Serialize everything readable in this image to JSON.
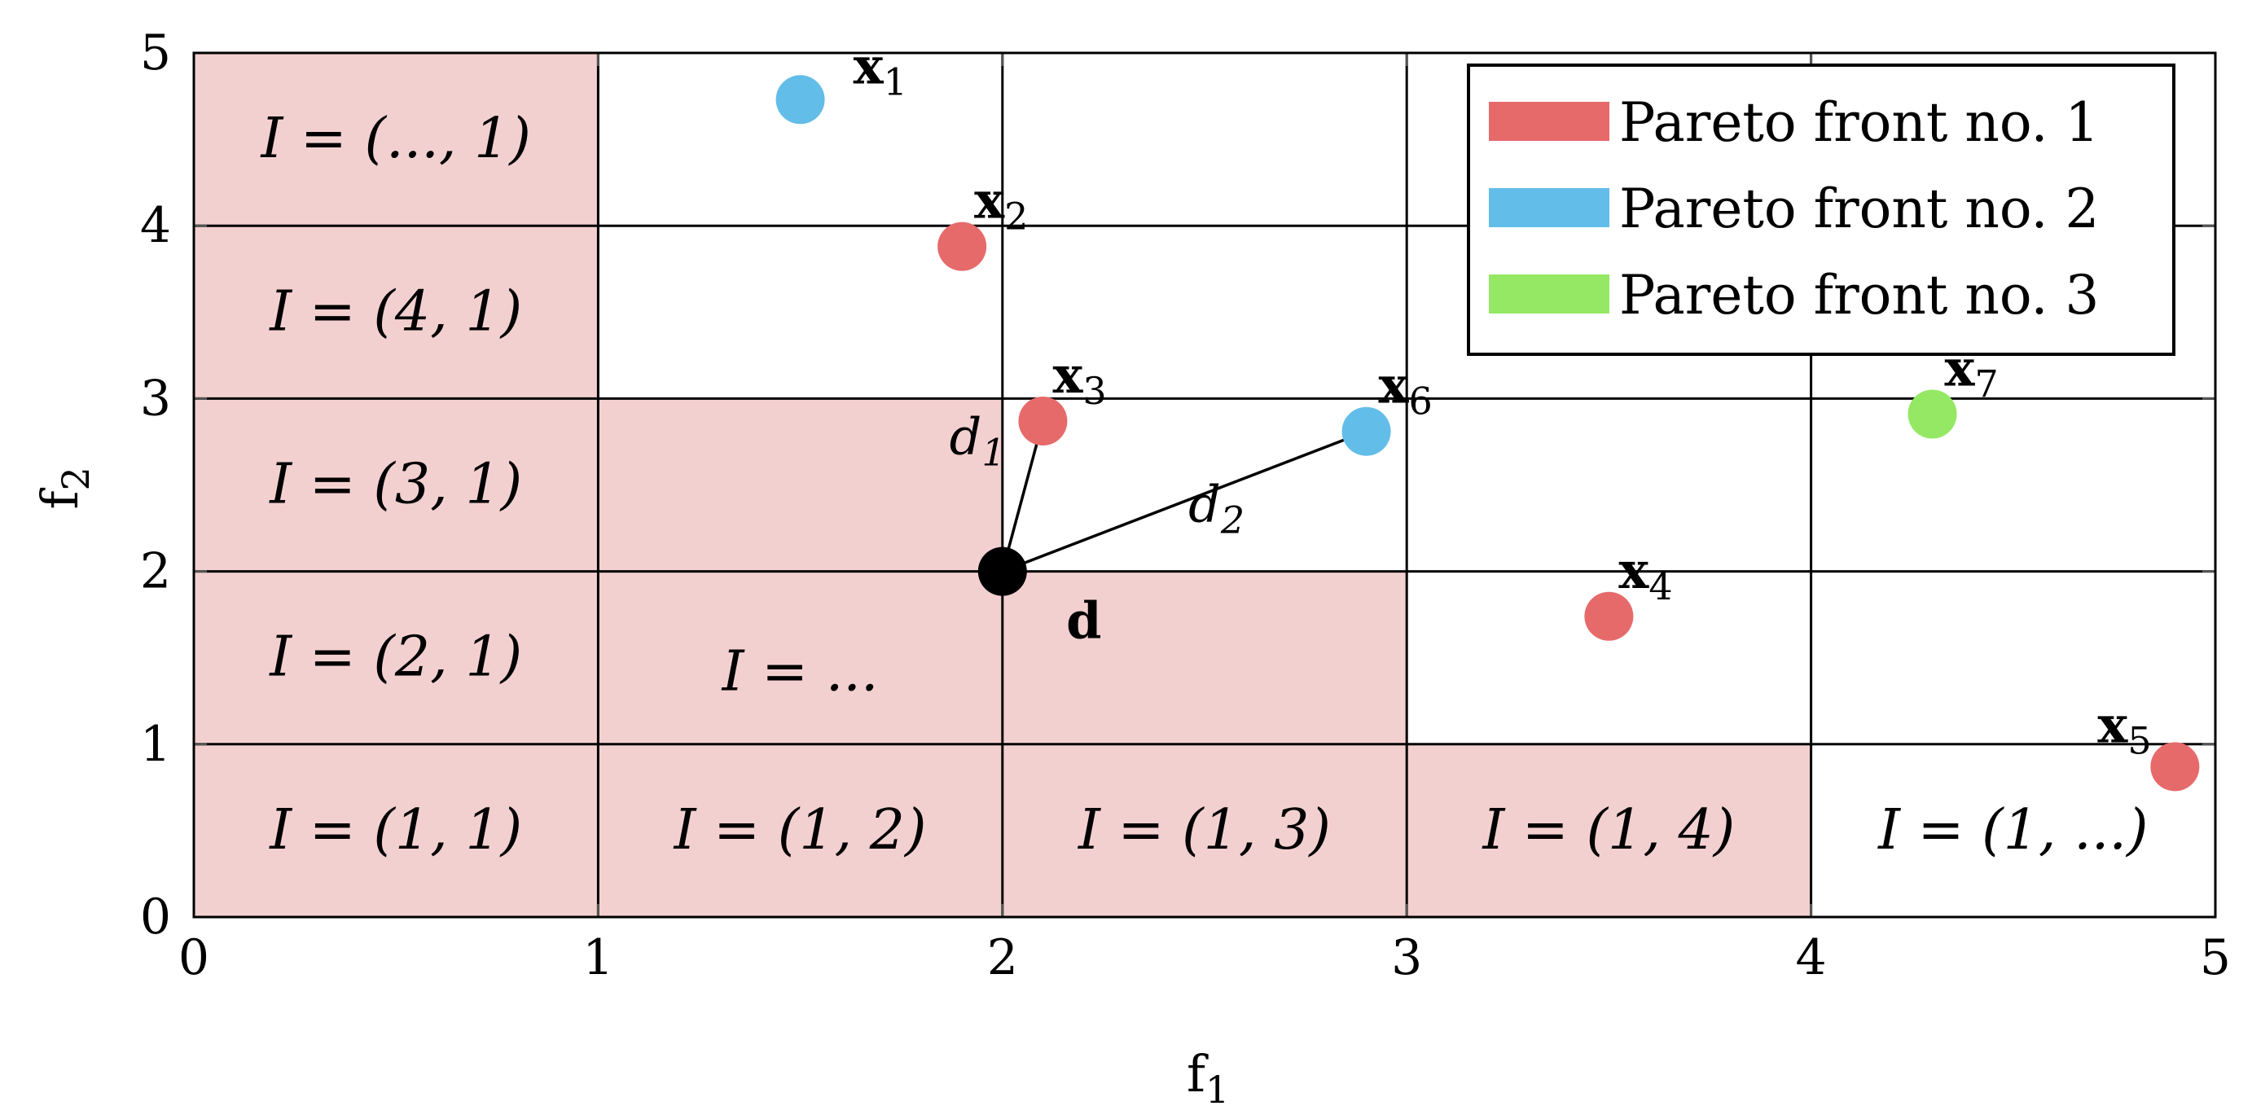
{
  "chart_data": {
    "type": "scatter",
    "xlabel": "f1",
    "ylabel": "f2",
    "xlim": [
      0,
      5
    ],
    "ylim": [
      0,
      5
    ],
    "x_ticks": [
      "0",
      "1",
      "2",
      "3",
      "4",
      "5"
    ],
    "y_ticks": [
      "0",
      "1",
      "2",
      "3",
      "4",
      "5"
    ],
    "grid": true,
    "legend_placement": "top-right",
    "series": [
      {
        "name": "Pareto front no. 1",
        "color": "#e66a6a",
        "points": [
          {
            "label": "x",
            "sub": "2",
            "x": 1.9,
            "y": 3.88
          },
          {
            "label": "x",
            "sub": "3",
            "x": 2.1,
            "y": 2.87
          },
          {
            "label": "x",
            "sub": "4",
            "x": 3.5,
            "y": 1.74
          },
          {
            "label": "x",
            "sub": "5",
            "x": 4.9,
            "y": 0.87
          }
        ]
      },
      {
        "name": "Pareto front no. 2",
        "color": "#62bde8",
        "points": [
          {
            "label": "x",
            "sub": "1",
            "x": 1.5,
            "y": 4.73
          },
          {
            "label": "x",
            "sub": "6",
            "x": 2.9,
            "y": 2.81
          }
        ]
      },
      {
        "name": "Pareto front no. 3",
        "color": "#94e864",
        "points": [
          {
            "label": "x",
            "sub": "7",
            "x": 4.3,
            "y": 2.91
          }
        ]
      }
    ],
    "reference_point": {
      "label": "d",
      "x": 2,
      "y": 2,
      "color": "#000000"
    },
    "distance_lines": [
      {
        "label": "d",
        "sub": "1",
        "from": [
          2,
          2
        ],
        "to": [
          2.1,
          2.87
        ]
      },
      {
        "label": "d",
        "sub": "2",
        "from": [
          2,
          2
        ],
        "to": [
          2.9,
          2.81
        ]
      }
    ],
    "regions": {
      "shade_color": "#f3d0d0",
      "cells": [
        {
          "col": 0,
          "row": 0,
          "text": "I = (1, 1)",
          "shaded": true
        },
        {
          "col": 0,
          "row": 1,
          "text": "I = (2, 1)",
          "shaded": true
        },
        {
          "col": 0,
          "row": 2,
          "text": "I = (3, 1)",
          "shaded": true
        },
        {
          "col": 0,
          "row": 3,
          "text": "I = (4, 1)",
          "shaded": true
        },
        {
          "col": 0,
          "row": 4,
          "text": "I = (..., 1)",
          "shaded": true
        },
        {
          "col": 1,
          "row": 0,
          "text": "I = (1, 2)",
          "shaded": true
        },
        {
          "col": 2,
          "row": 0,
          "text": "I = (1, 3)",
          "shaded": true
        },
        {
          "col": 3,
          "row": 0,
          "text": "I = (1, 4)",
          "shaded": true
        },
        {
          "col": 4,
          "row": 0,
          "text": "I = (1, ...)",
          "shaded": false
        },
        {
          "col": 1,
          "row": 1,
          "text": "I = ...",
          "shaded": true
        },
        {
          "col": 1,
          "row": 2,
          "text": "",
          "shaded": true
        },
        {
          "col": 2,
          "row": 1,
          "text": "",
          "shaded": true
        }
      ]
    }
  }
}
